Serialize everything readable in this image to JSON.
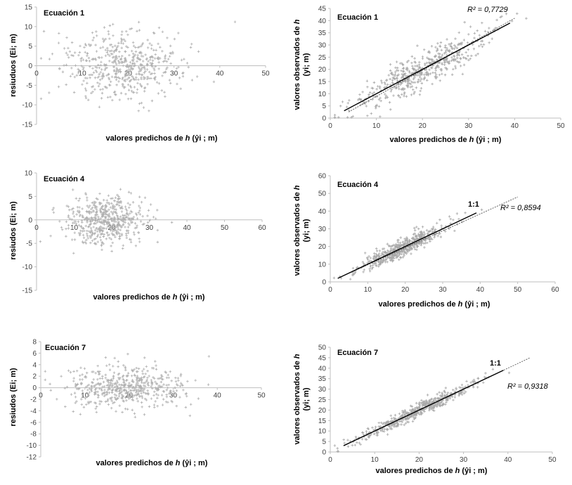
{
  "chart_data": [
    {
      "type": "scatter",
      "title": "Ecuación 1",
      "xlabel": "valores predichos de h (ŷi ; m)",
      "xlabel_parts": {
        "pre": "valores predichos de ",
        "var": "h",
        "post": " (ŷi ; m)"
      },
      "ylabel": "resiuduos (Ei; m)",
      "xlim": [
        0,
        50
      ],
      "ylim": [
        -15,
        15
      ],
      "xticks": [
        0,
        10,
        20,
        30,
        40,
        50
      ],
      "yticks": [
        -15,
        -10,
        -5,
        0,
        5,
        10,
        15
      ],
      "marker_color": "#b0b0b0",
      "cloud": {
        "x_center": 19,
        "x_spread": 6,
        "y_spread": 4.2,
        "count": 520
      }
    },
    {
      "type": "scatter",
      "title": "Ecuación 1",
      "xlabel": "valores predichos de h (ŷi ; m)",
      "xlabel_parts": {
        "pre": "valores predichos de ",
        "var": "h",
        "post": " (ŷi ; m)"
      },
      "ylabel": "valores observados de h (yi; m)",
      "ylabel_parts": {
        "line1_pre": "valores observados de ",
        "line1_var": "h",
        "line2": "(yi; m)"
      },
      "xlim": [
        0,
        50
      ],
      "ylim": [
        0,
        45
      ],
      "xticks": [
        0,
        10,
        20,
        30,
        40,
        50
      ],
      "yticks": [
        0,
        5,
        10,
        15,
        20,
        25,
        30,
        35,
        40,
        45
      ],
      "r2": "R² = 0,7729",
      "fit_line": {
        "x": [
          4,
          40
        ],
        "y": [
          2.5,
          41
        ]
      },
      "identity_line": {
        "x": [
          3,
          39
        ],
        "y": [
          3,
          39
        ]
      },
      "marker_color": "#a8a8a8",
      "cloud": {
        "x_center": 20,
        "x_spread": 6.5,
        "y_spread": 3.6,
        "count": 520
      }
    },
    {
      "type": "scatter",
      "title": "Ecuación 4",
      "xlabel": "valores predichos de h (ŷi ; m)",
      "xlabel_parts": {
        "pre": "valores predichos de ",
        "var": "h",
        "post": " (ŷi ; m)"
      },
      "ylabel": "resiudos (Ei; m)",
      "xlim": [
        0,
        60
      ],
      "ylim": [
        -15,
        10
      ],
      "xticks": [
        0,
        10,
        20,
        30,
        40,
        50,
        60
      ],
      "yticks": [
        -15,
        -10,
        -5,
        0,
        5,
        10
      ],
      "marker_color": "#b0b0b0",
      "cloud": {
        "x_center": 18,
        "x_spread": 5,
        "y_spread": 2.6,
        "count": 520
      }
    },
    {
      "type": "scatter",
      "title": "Ecuación 4",
      "xlabel": "valores predichos de h (ŷi ; m)",
      "xlabel_parts": {
        "pre": "valores predichos de ",
        "var": "h",
        "post": " (ŷi ; m)"
      },
      "ylabel": "valores observados de h (yi; m)",
      "ylabel_parts": {
        "line1_pre": "valores observados de ",
        "line1_var": "h",
        "line2": "(yi; m)"
      },
      "xlim": [
        0,
        60
      ],
      "ylim": [
        0,
        60
      ],
      "xticks": [
        0,
        10,
        20,
        30,
        40,
        50,
        60
      ],
      "yticks": [
        0,
        10,
        20,
        30,
        40,
        50,
        60
      ],
      "r2": "R² = 0,8594",
      "identity_label": "1:1",
      "fit_line": {
        "x": [
          2,
          50
        ],
        "y": [
          2,
          48
        ]
      },
      "identity_line": {
        "x": [
          2,
          39
        ],
        "y": [
          2,
          39
        ]
      },
      "marker_color": "#a8a8a8",
      "cloud": {
        "x_center": 19,
        "x_spread": 5.5,
        "y_spread": 2.4,
        "count": 520
      }
    },
    {
      "type": "scatter",
      "title": "Ecuación 7",
      "xlabel": "valores predichos de h (ŷi ; m)",
      "xlabel_parts": {
        "pre": "valores predichos de ",
        "var": "h",
        "post": " (ŷi ; m)"
      },
      "ylabel": "resiudos (Ei; m)",
      "xlim": [
        0,
        50
      ],
      "ylim": [
        -12,
        8
      ],
      "xticks": [
        0,
        10,
        20,
        30,
        40,
        50
      ],
      "yticks": [
        -12,
        -10,
        -8,
        -6,
        -4,
        -2,
        0,
        2,
        4,
        6,
        8
      ],
      "marker_color": "#b0b0b0",
      "cloud": {
        "x_center": 19,
        "x_spread": 6,
        "y_spread": 1.8,
        "count": 520
      }
    },
    {
      "type": "scatter",
      "title": "Ecuación 7",
      "xlabel": "valores predichos de h (ŷi ; m)",
      "xlabel_parts": {
        "pre": "valores predichos de ",
        "var": "h",
        "post": " (ŷi ; m)"
      },
      "ylabel": "valores observados de h (yi; m)",
      "ylabel_parts": {
        "line1_pre": "valores observados de ",
        "line1_var": "h",
        "line2": "(yi; m)"
      },
      "xlim": [
        0,
        50
      ],
      "ylim": [
        0,
        50
      ],
      "xticks": [
        0,
        10,
        20,
        30,
        40,
        50
      ],
      "yticks": [
        0,
        5,
        10,
        15,
        20,
        25,
        30,
        35,
        40,
        45,
        50
      ],
      "r2": "R² = 0,9318",
      "identity_label": "1:1",
      "fit_line": {
        "x": [
          3,
          45
        ],
        "y": [
          3,
          45
        ]
      },
      "identity_line": {
        "x": [
          3,
          39
        ],
        "y": [
          3,
          39
        ]
      },
      "marker_color": "#a8a8a8",
      "cloud": {
        "x_center": 19,
        "x_spread": 6,
        "y_spread": 1.6,
        "count": 520
      }
    }
  ]
}
